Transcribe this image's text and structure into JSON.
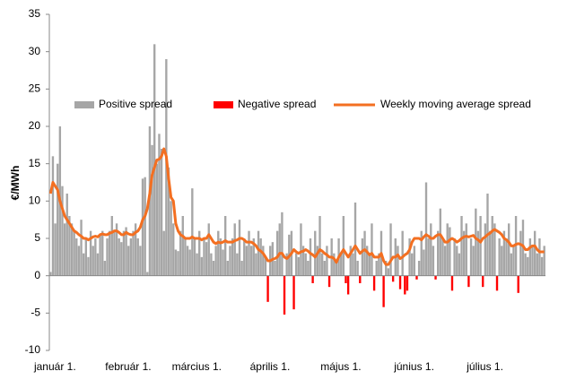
{
  "chart_data": {
    "type": "bar",
    "y_label": "€/MWh",
    "ylim": [
      -10,
      35
    ],
    "yticks": [
      -10,
      -5,
      0,
      5,
      10,
      15,
      20,
      25,
      30,
      35
    ],
    "legend": "top",
    "categories": [
      "január 1.",
      null,
      null,
      null,
      null,
      null,
      null,
      null,
      null,
      null,
      null,
      null,
      null,
      null,
      null,
      null,
      null,
      null,
      null,
      null,
      null,
      null,
      null,
      null,
      null,
      null,
      null,
      null,
      null,
      null,
      null,
      "február 1.",
      null,
      null,
      null,
      null,
      null,
      null,
      null,
      null,
      null,
      null,
      null,
      null,
      null,
      null,
      null,
      null,
      null,
      null,
      null,
      null,
      null,
      null,
      null,
      null,
      null,
      null,
      null,
      null,
      "március 1.",
      null,
      null,
      null,
      null,
      null,
      null,
      null,
      null,
      null,
      null,
      null,
      null,
      null,
      null,
      null,
      null,
      null,
      null,
      null,
      null,
      null,
      null,
      null,
      null,
      null,
      null,
      null,
      null,
      null,
      null,
      "április 1.",
      null,
      null,
      null,
      null,
      null,
      null,
      null,
      null,
      null,
      null,
      null,
      null,
      null,
      null,
      null,
      null,
      null,
      null,
      null,
      null,
      null,
      null,
      null,
      null,
      null,
      null,
      null,
      null,
      null,
      "május 1.",
      null,
      null,
      null,
      null,
      null,
      null,
      null,
      null,
      null,
      null,
      null,
      null,
      null,
      null,
      null,
      null,
      null,
      null,
      null,
      null,
      null,
      null,
      null,
      null,
      null,
      null,
      null,
      null,
      null,
      null,
      "június 1.",
      null,
      null,
      null,
      null,
      null,
      null,
      null,
      null,
      null,
      null,
      null,
      null,
      null,
      null,
      null,
      null,
      null,
      null,
      null,
      null,
      null,
      null,
      null,
      null,
      null,
      null,
      null,
      null,
      null,
      "július 1.",
      null,
      null,
      null,
      null,
      null,
      null,
      null,
      null,
      null,
      null,
      null,
      null,
      null,
      null,
      null,
      null,
      null,
      null,
      null,
      null,
      null,
      null,
      null,
      null,
      null,
      null,
      null
    ],
    "series": [
      {
        "name": "Positive spread",
        "type": "bar",
        "color": "#a6a6a6",
        "values": [
          0.5,
          16,
          7,
          15,
          20,
          12,
          7,
          11,
          8,
          7,
          6,
          5,
          4,
          7.5,
          3,
          5,
          2.5,
          6,
          4,
          5,
          3,
          5.5,
          6,
          2,
          5,
          6,
          8,
          6,
          7,
          5,
          4.5,
          6,
          6.5,
          4,
          5,
          6,
          7,
          5,
          4,
          13,
          13.2,
          0.5,
          20,
          17.5,
          31,
          15,
          19,
          17,
          6,
          29,
          14.5,
          10,
          7,
          3.5,
          3.3,
          6,
          8,
          5,
          4,
          3.5,
          11.7,
          5,
          3,
          6,
          2.5,
          5,
          4.5,
          7,
          3,
          2,
          4,
          6,
          5,
          3.5,
          8,
          2,
          4,
          5,
          7,
          3,
          7.5,
          2,
          5,
          4,
          6,
          4,
          5,
          3,
          6,
          5,
          4,
          2.5,
          null,
          4,
          4.5,
          2,
          6,
          7,
          8.5,
          null,
          3,
          5.5,
          6,
          null,
          3,
          2.5,
          7,
          4,
          3,
          2,
          5,
          null,
          6,
          4,
          8,
          3,
          2,
          4,
          null,
          5,
          3,
          2,
          5,
          3,
          8,
          null,
          null,
          4,
          3,
          9.8,
          2,
          null,
          5,
          6,
          4,
          3,
          7,
          null,
          2,
          3,
          6,
          null,
          2,
          1,
          7,
          null,
          5,
          4,
          null,
          6,
          null,
          null,
          5,
          3,
          4,
          null,
          2,
          6,
          3.5,
          12.5,
          5,
          7,
          4,
          null,
          6,
          9,
          5,
          4,
          7,
          6.5,
          null,
          5,
          4,
          3,
          8,
          6,
          7,
          null,
          5,
          4,
          9,
          6,
          8,
          null,
          7,
          11,
          6,
          8,
          7,
          null,
          5,
          4,
          6,
          5,
          7,
          3,
          4,
          8,
          null,
          6,
          7.5,
          3,
          2.5,
          5,
          4,
          6,
          3,
          5,
          2.5,
          4
        ]
      },
      {
        "name": "Negative spread",
        "type": "bar",
        "color": "#ff0000",
        "values": [
          null,
          null,
          null,
          null,
          null,
          null,
          null,
          null,
          null,
          null,
          null,
          null,
          null,
          null,
          null,
          null,
          null,
          null,
          null,
          null,
          null,
          null,
          null,
          null,
          null,
          null,
          null,
          null,
          null,
          null,
          null,
          null,
          null,
          null,
          null,
          null,
          null,
          null,
          null,
          null,
          null,
          null,
          null,
          null,
          null,
          null,
          null,
          null,
          null,
          null,
          null,
          null,
          null,
          null,
          null,
          null,
          null,
          null,
          null,
          null,
          null,
          null,
          null,
          null,
          null,
          null,
          null,
          null,
          null,
          null,
          null,
          null,
          null,
          null,
          null,
          null,
          null,
          null,
          null,
          null,
          null,
          null,
          null,
          null,
          null,
          null,
          null,
          null,
          null,
          null,
          null,
          null,
          -3.5,
          null,
          null,
          null,
          null,
          null,
          null,
          -5.2,
          null,
          null,
          null,
          -4.5,
          null,
          null,
          null,
          null,
          null,
          null,
          null,
          -1,
          null,
          null,
          null,
          null,
          null,
          null,
          -1.5,
          null,
          null,
          null,
          null,
          null,
          null,
          -1,
          -2.5,
          null,
          null,
          null,
          null,
          -1,
          null,
          null,
          null,
          null,
          null,
          -2,
          null,
          null,
          null,
          -4.2,
          null,
          null,
          null,
          -0.8,
          null,
          null,
          -1.8,
          null,
          -2.5,
          -2,
          null,
          null,
          null,
          -0.5,
          null,
          null,
          null,
          null,
          null,
          null,
          null,
          -0.5,
          null,
          null,
          null,
          null,
          null,
          null,
          -2,
          null,
          null,
          null,
          null,
          null,
          null,
          -1.5,
          null,
          null,
          null,
          null,
          null,
          -1.5,
          null,
          null,
          null,
          null,
          null,
          -2,
          null,
          null,
          null,
          null,
          null,
          null,
          null,
          null,
          -2.3,
          null,
          null,
          null,
          null,
          null,
          null,
          null,
          null,
          null,
          null,
          null
        ]
      },
      {
        "name": "Weekly moving average spread",
        "type": "line",
        "color": "#f36f21",
        "values": [
          11,
          12.5,
          12,
          11.5,
          10,
          9,
          8,
          7.5,
          7,
          6.5,
          6,
          5.8,
          5.5,
          5.3,
          5,
          5,
          4.8,
          5,
          5.2,
          5.3,
          5.2,
          5.5,
          5.6,
          5.5,
          5.5,
          5.7,
          5.8,
          6,
          6,
          5.8,
          5.5,
          5.5,
          5.8,
          5.6,
          5.5,
          5.5,
          5.8,
          6,
          6.5,
          7.5,
          8,
          9,
          11,
          13.5,
          14.5,
          15.5,
          15.6,
          16,
          17,
          16,
          13,
          10.5,
          10,
          7,
          6,
          5.5,
          5.3,
          5,
          5,
          5,
          5.2,
          5,
          5,
          5,
          4.8,
          5,
          5,
          5.5,
          5,
          4.5,
          4.3,
          4.5,
          4.4,
          4.5,
          4.7,
          4.5,
          4.5,
          4.5,
          4.7,
          4.8,
          5,
          5,
          4.8,
          4.5,
          4.5,
          4.5,
          4.3,
          4,
          3.5,
          3.3,
          3,
          2.5,
          2,
          2,
          2.2,
          2.3,
          2.5,
          3,
          3,
          2.5,
          2.3,
          2.6,
          3,
          3.5,
          3.2,
          3,
          3.2,
          3.3,
          3.5,
          3.3,
          3,
          2.8,
          2.5,
          3,
          3.5,
          3.3,
          3,
          2.8,
          2.5,
          2.5,
          2.3,
          1.8,
          2.5,
          3,
          3.5,
          3,
          2.5,
          3,
          3.5,
          4,
          3.5,
          3,
          3.3,
          3.5,
          3.2,
          2.8,
          3,
          2.5,
          2.5,
          2.5,
          3,
          2,
          1.5,
          1.5,
          2,
          2.5,
          2.5,
          2.8,
          2.3,
          2.5,
          2.8,
          3,
          3.5,
          4.5,
          5,
          5,
          5,
          4.8,
          5.2,
          5.5,
          5.3,
          5,
          5,
          5.3,
          5.5,
          5.5,
          5,
          4.5,
          4.5,
          4.8,
          5,
          4.8,
          4.5,
          4.7,
          5,
          5.2,
          5.3,
          5.2,
          5.3,
          5.4,
          5,
          4.8,
          4.5,
          5,
          5.2,
          5.5,
          5.7,
          6,
          6.2,
          6,
          5.8,
          5.5,
          5,
          4.8,
          4.5,
          4,
          4,
          4.2,
          4.3,
          4.2,
          4,
          3.5,
          3.5,
          3.8,
          4,
          4,
          3.5,
          3.2,
          3.2,
          3.2
        ]
      }
    ]
  }
}
